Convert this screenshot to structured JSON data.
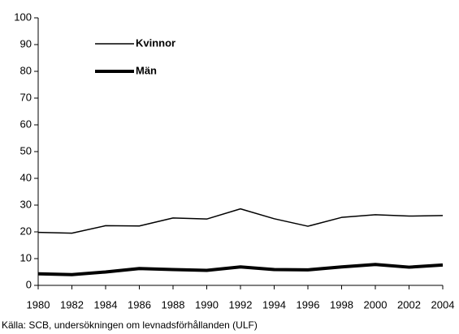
{
  "chart_data": {
    "type": "line",
    "x": [
      1980,
      1982,
      1984,
      1986,
      1988,
      1990,
      1992,
      1994,
      1996,
      1998,
      2000,
      2002,
      2004
    ],
    "series": [
      {
        "name": "Kvinnor",
        "color": "#000000",
        "width": 1.5,
        "values": [
          19.8,
          19.5,
          22.3,
          22.2,
          25.2,
          24.8,
          28.6,
          24.9,
          22.1,
          25.4,
          26.4,
          25.9,
          26.1
        ]
      },
      {
        "name": "Män",
        "color": "#000000",
        "width": 4,
        "values": [
          4.3,
          4.0,
          5.0,
          6.3,
          5.9,
          5.6,
          6.9,
          5.9,
          5.8,
          6.9,
          7.8,
          6.8,
          7.6
        ]
      }
    ],
    "xlim": [
      1980,
      2004
    ],
    "xticks": [
      1980,
      1982,
      1984,
      1986,
      1988,
      1990,
      1992,
      1994,
      1996,
      1998,
      2000,
      2002,
      2004
    ],
    "ylim": [
      0,
      100
    ],
    "yticks": [
      0,
      10,
      20,
      30,
      40,
      50,
      60,
      70,
      80,
      90,
      100
    ],
    "grid": false,
    "legend": "upper left",
    "source": "Källa: SCB, undersökningen om levnadsförhållanden (ULF)"
  }
}
